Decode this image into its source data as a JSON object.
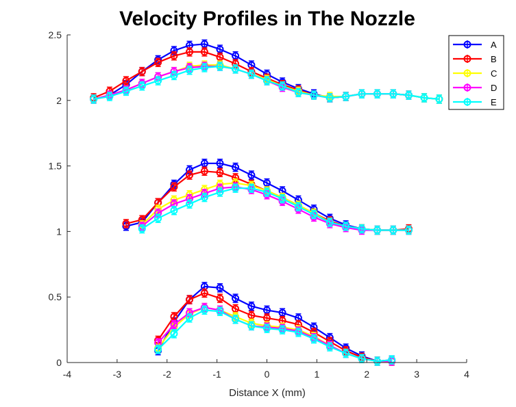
{
  "chart_data": {
    "type": "line",
    "title": "Velocity Profiles in The Nozzle",
    "xlabel": "Distance X (mm)",
    "ylabel": "",
    "xlim": [
      -4,
      4
    ],
    "ylim": [
      0,
      2.5
    ],
    "xticks": [
      -4,
      -3,
      -2,
      -1,
      0,
      1,
      2,
      3,
      4
    ],
    "xtick_labels": [
      "-4",
      "-3",
      "-2",
      "-1",
      "0",
      "1",
      "2",
      "3",
      "4"
    ],
    "yticks": [
      0,
      0.5,
      1,
      1.5,
      2,
      2.5
    ],
    "ytick_labels": [
      "0",
      "0.5",
      "1",
      "1.5",
      "2",
      "2.5"
    ],
    "grid": false,
    "legend_position": "top-right",
    "series": [
      {
        "name": "A",
        "color": "#0000ff",
        "groups": [
          {
            "x": [
              -3.47,
              -3.15,
              -2.82,
              -2.5,
              -2.18,
              -1.86,
              -1.55,
              -1.25,
              -0.94,
              -0.63,
              -0.31,
              0.0,
              0.31,
              0.63,
              0.94,
              1.26,
              1.58,
              1.9,
              2.21,
              2.53,
              2.84,
              3.15,
              3.45
            ],
            "y": [
              2.01,
              2.04,
              2.12,
              2.22,
              2.31,
              2.38,
              2.42,
              2.43,
              2.39,
              2.34,
              2.27,
              2.2,
              2.14,
              2.09,
              2.05,
              2.02,
              2.03,
              2.05,
              2.05,
              2.05,
              2.04,
              2.02,
              2.01
            ]
          },
          {
            "x": [
              -2.82,
              -2.5,
              -2.18,
              -1.86,
              -1.55,
              -1.25,
              -0.94,
              -0.63,
              -0.31,
              0.0,
              0.31,
              0.63,
              0.94,
              1.26,
              1.58,
              1.9,
              2.21,
              2.53,
              2.84
            ],
            "y": [
              1.04,
              1.07,
              1.22,
              1.36,
              1.47,
              1.52,
              1.52,
              1.49,
              1.43,
              1.37,
              1.31,
              1.24,
              1.17,
              1.1,
              1.05,
              1.02,
              1.01,
              1.01,
              1.01
            ]
          },
          {
            "x": [
              -2.18,
              -1.86,
              -1.55,
              -1.25,
              -0.94,
              -0.63,
              -0.31,
              0.0,
              0.31,
              0.63,
              0.94,
              1.26,
              1.58,
              1.9,
              2.21,
              2.5
            ],
            "y": [
              0.09,
              0.31,
              0.48,
              0.58,
              0.57,
              0.49,
              0.43,
              0.4,
              0.38,
              0.34,
              0.27,
              0.19,
              0.11,
              0.05,
              0.01,
              0.02
            ]
          }
        ]
      },
      {
        "name": "B",
        "color": "#ff0000",
        "groups": [
          {
            "x": [
              -3.47,
              -3.15,
              -2.82,
              -2.5,
              -2.18,
              -1.86,
              -1.55,
              -1.25,
              -0.94,
              -0.63,
              -0.31,
              0.0,
              0.31,
              0.63,
              0.94,
              1.26,
              1.58,
              1.9,
              2.21,
              2.53,
              2.84
            ],
            "y": [
              2.02,
              2.07,
              2.15,
              2.22,
              2.29,
              2.34,
              2.37,
              2.37,
              2.33,
              2.28,
              2.22,
              2.17,
              2.12,
              2.08,
              2.04,
              2.02,
              2.03,
              2.05,
              2.05,
              2.05,
              2.04
            ]
          },
          {
            "x": [
              -2.82,
              -2.5,
              -2.18,
              -1.86,
              -1.55,
              -1.25,
              -0.94,
              -0.63,
              -0.31,
              0.0,
              0.31,
              0.63,
              0.94,
              1.26,
              1.58,
              1.9,
              2.21,
              2.53,
              2.84
            ],
            "y": [
              1.06,
              1.09,
              1.22,
              1.34,
              1.43,
              1.46,
              1.45,
              1.41,
              1.36,
              1.31,
              1.26,
              1.2,
              1.14,
              1.08,
              1.04,
              1.02,
              1.01,
              1.01,
              1.02
            ]
          },
          {
            "x": [
              -2.18,
              -1.86,
              -1.55,
              -1.25,
              -0.94,
              -0.63,
              -0.31,
              0.0,
              0.31,
              0.63,
              0.94,
              1.26,
              1.58,
              1.9,
              2.21,
              2.5
            ],
            "y": [
              0.17,
              0.35,
              0.48,
              0.53,
              0.49,
              0.41,
              0.36,
              0.34,
              0.32,
              0.29,
              0.23,
              0.16,
              0.09,
              0.04,
              0.01,
              0.01
            ]
          }
        ]
      },
      {
        "name": "C",
        "color": "#ffff00",
        "groups": [
          {
            "x": [
              -3.47,
              -3.15,
              -2.82,
              -2.5,
              -2.18,
              -1.86,
              -1.55,
              -1.25,
              -0.94,
              -0.63,
              -0.31,
              0.0,
              0.31,
              0.63,
              0.94,
              1.26,
              1.58,
              1.9,
              2.21,
              2.53,
              2.84,
              3.15,
              3.45
            ],
            "y": [
              2.01,
              2.04,
              2.08,
              2.13,
              2.18,
              2.22,
              2.26,
              2.27,
              2.27,
              2.24,
              2.2,
              2.16,
              2.11,
              2.07,
              2.04,
              2.03,
              2.03,
              2.05,
              2.05,
              2.05,
              2.04,
              2.02,
              2.01
            ]
          },
          {
            "x": [
              -2.5,
              -2.18,
              -1.86,
              -1.55,
              -1.25,
              -0.94,
              -0.63,
              -0.31,
              0.0,
              0.31,
              0.63,
              0.94,
              1.26,
              1.58,
              1.9,
              2.21,
              2.53,
              2.84
            ],
            "y": [
              1.05,
              1.17,
              1.24,
              1.28,
              1.32,
              1.36,
              1.37,
              1.35,
              1.31,
              1.26,
              1.2,
              1.14,
              1.07,
              1.04,
              1.02,
              1.01,
              1.01,
              1.01
            ]
          },
          {
            "x": [
              -2.18,
              -1.86,
              -1.55,
              -1.25,
              -0.94,
              -0.63,
              -0.31,
              0.0,
              0.31,
              0.63,
              0.94,
              1.26,
              1.58,
              1.9,
              2.21,
              2.5
            ],
            "y": [
              0.11,
              0.27,
              0.37,
              0.42,
              0.4,
              0.35,
              0.3,
              0.28,
              0.27,
              0.25,
              0.2,
              0.13,
              0.07,
              0.03,
              0.01,
              0.01
            ]
          }
        ]
      },
      {
        "name": "D",
        "color": "#ff00ff",
        "groups": [
          {
            "x": [
              -3.47,
              -3.15,
              -2.82,
              -2.5,
              -2.18,
              -1.86,
              -1.55,
              -1.25,
              -0.94,
              -0.63,
              -0.31,
              0.0,
              0.31,
              0.63,
              0.94,
              1.26,
              1.58,
              1.9,
              2.21,
              2.53,
              2.84
            ],
            "y": [
              2.01,
              2.04,
              2.08,
              2.13,
              2.18,
              2.22,
              2.25,
              2.26,
              2.26,
              2.24,
              2.2,
              2.15,
              2.1,
              2.06,
              2.04,
              2.02,
              2.03,
              2.05,
              2.05,
              2.05,
              2.04
            ]
          },
          {
            "x": [
              -2.5,
              -2.18,
              -1.86,
              -1.55,
              -1.25,
              -0.94,
              -0.63,
              -0.31,
              0.0,
              0.31,
              0.63,
              0.94,
              1.26,
              1.58,
              1.9,
              2.21,
              2.53,
              2.84
            ],
            "y": [
              1.04,
              1.14,
              1.21,
              1.25,
              1.29,
              1.33,
              1.34,
              1.32,
              1.28,
              1.23,
              1.17,
              1.11,
              1.06,
              1.03,
              1.01,
              1.01,
              1.01,
              1.01
            ]
          },
          {
            "x": [
              -2.18,
              -1.86,
              -1.55,
              -1.25,
              -0.94,
              -0.63,
              -0.31,
              0.0,
              0.31,
              0.63,
              0.94,
              1.26,
              1.58,
              1.9,
              2.21,
              2.5
            ],
            "y": [
              0.15,
              0.29,
              0.38,
              0.42,
              0.4,
              0.33,
              0.28,
              0.27,
              0.26,
              0.24,
              0.19,
              0.13,
              0.07,
              0.03,
              0.01,
              0.01
            ]
          }
        ]
      },
      {
        "name": "E",
        "color": "#00ffff",
        "groups": [
          {
            "x": [
              -3.47,
              -3.15,
              -2.82,
              -2.5,
              -2.18,
              -1.86,
              -1.55,
              -1.25,
              -0.94,
              -0.63,
              -0.31,
              0.0,
              0.31,
              0.63,
              0.94,
              1.26,
              1.58,
              1.9,
              2.21,
              2.53,
              2.84,
              3.15,
              3.45
            ],
            "y": [
              2.01,
              2.03,
              2.07,
              2.11,
              2.15,
              2.19,
              2.23,
              2.25,
              2.26,
              2.24,
              2.2,
              2.15,
              2.11,
              2.06,
              2.04,
              2.02,
              2.03,
              2.05,
              2.05,
              2.05,
              2.04,
              2.02,
              2.01
            ]
          },
          {
            "x": [
              -2.5,
              -2.18,
              -1.86,
              -1.55,
              -1.25,
              -0.94,
              -0.63,
              -0.31,
              0.0,
              0.31,
              0.63,
              0.94,
              1.26,
              1.58,
              1.9,
              2.21,
              2.53,
              2.84
            ],
            "y": [
              1.02,
              1.1,
              1.16,
              1.21,
              1.26,
              1.3,
              1.33,
              1.33,
              1.3,
              1.25,
              1.19,
              1.13,
              1.07,
              1.04,
              1.02,
              1.01,
              1.01,
              1.01
            ]
          },
          {
            "x": [
              -2.18,
              -1.86,
              -1.55,
              -1.25,
              -0.94,
              -0.63,
              -0.31,
              0.0,
              0.31,
              0.63,
              0.94,
              1.26,
              1.58,
              1.9,
              2.21,
              2.5
            ],
            "y": [
              0.1,
              0.22,
              0.34,
              0.4,
              0.39,
              0.33,
              0.28,
              0.26,
              0.25,
              0.23,
              0.18,
              0.12,
              0.07,
              0.03,
              0.01,
              0.02
            ]
          }
        ]
      }
    ]
  }
}
